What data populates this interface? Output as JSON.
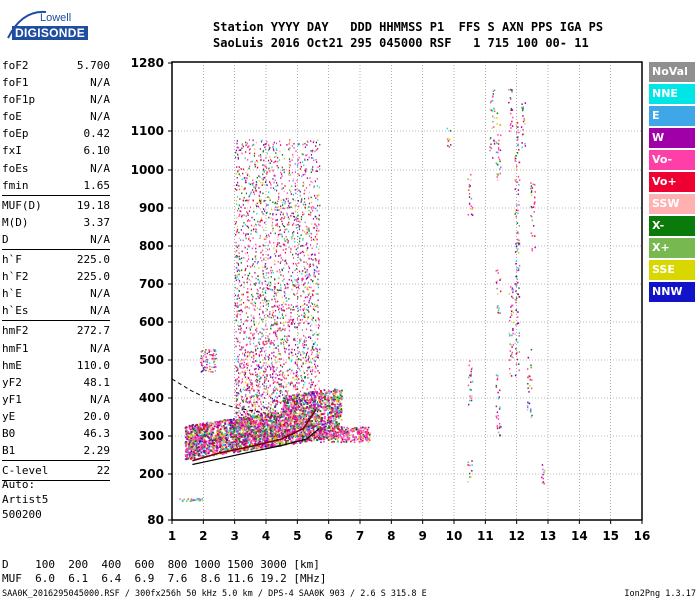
{
  "logo": {
    "line1": "Lowell",
    "line2": "DIGISONDE"
  },
  "header": {
    "line1": "Station YYYY DAY   DDD HHMMSS P1  FFS S AXN PPS IGA PS",
    "line2": "SaoLuis 2016 Oct21 295 045000 RSF   1 715 100 00- 11"
  },
  "params": [
    {
      "label": "foF2",
      "value": "5.700",
      "divider_after": false
    },
    {
      "label": "foF1",
      "value": "N/A",
      "divider_after": false
    },
    {
      "label": "foF1p",
      "value": "N/A",
      "divider_after": false
    },
    {
      "label": "foE",
      "value": "N/A",
      "divider_after": false
    },
    {
      "label": "foEp",
      "value": "0.42",
      "divider_after": false
    },
    {
      "label": "fxI",
      "value": "6.10",
      "divider_after": false
    },
    {
      "label": "foEs",
      "value": "N/A",
      "divider_after": false
    },
    {
      "label": "fmin",
      "value": "1.65",
      "divider_after": true
    },
    {
      "label": "MUF(D)",
      "value": "19.18",
      "divider_after": false
    },
    {
      "label": "M(D)",
      "value": "3.37",
      "divider_after": false
    },
    {
      "label": "D",
      "value": "N/A",
      "divider_after": true
    },
    {
      "label": "h`F",
      "value": "225.0",
      "divider_after": false
    },
    {
      "label": "h`F2",
      "value": "225.0",
      "divider_after": false
    },
    {
      "label": "h`E",
      "value": "N/A",
      "divider_after": false
    },
    {
      "label": "h`Es",
      "value": "N/A",
      "divider_after": true
    },
    {
      "label": "hmF2",
      "value": "272.7",
      "divider_after": false
    },
    {
      "label": "hmF1",
      "value": "N/A",
      "divider_after": false
    },
    {
      "label": "hmE",
      "value": "110.0",
      "divider_after": false
    },
    {
      "label": "yF2",
      "value": "48.1",
      "divider_after": false
    },
    {
      "label": "yF1",
      "value": "N/A",
      "divider_after": false
    },
    {
      "label": "yE",
      "value": "20.0",
      "divider_after": false
    },
    {
      "label": "B0",
      "value": "46.3",
      "divider_after": false
    },
    {
      "label": "B1",
      "value": "2.29",
      "divider_after": true
    },
    {
      "label": "C-level",
      "value": "22",
      "divider_after": true
    }
  ],
  "auto": {
    "line1": "Auto:",
    "line2": "Artist5",
    "line3": "500200"
  },
  "plot": {
    "y_ticks": [
      "1280",
      "1100",
      "1000",
      "900",
      "800",
      "700",
      "600",
      "500",
      "400",
      "300",
      "200",
      "80"
    ],
    "x_ticks": [
      "1",
      "2",
      "3",
      "4",
      "5",
      "6",
      "7",
      "8",
      "9",
      "10",
      "11",
      "12",
      "13",
      "14",
      "15",
      "16"
    ],
    "x_range": [
      1,
      16
    ],
    "y_range": [
      80,
      1280
    ]
  },
  "legend": [
    {
      "label": "NoVal",
      "color": "#909090"
    },
    {
      "label": "NNE",
      "color": "#00e6e6"
    },
    {
      "label": "E",
      "color": "#3fa7e8"
    },
    {
      "label": "W",
      "color": "#a000a8"
    },
    {
      "label": "Vo-",
      "color": "#ff3fa8"
    },
    {
      "label": "Vo+",
      "color": "#ef0033"
    },
    {
      "label": "SSW",
      "color": "#ffb0b0"
    },
    {
      "label": "X-",
      "color": "#0a7a0a"
    },
    {
      "label": "X+",
      "color": "#78b850"
    },
    {
      "label": "SSE",
      "color": "#d8d800"
    },
    {
      "label": "NNW",
      "color": "#1212c8"
    }
  ],
  "bottom": {
    "d_row": "D    100  200  400  600  800 1000 1500 3000 [km]",
    "muf_row": "MUF  6.0  6.1  6.4  6.9  7.6  8.6 11.6 19.2 [MHz]"
  },
  "footer": {
    "left": "SAA0K_2016295045000.RSF / 300fx256h 50 kHz 5.0 km / DPS-4 SAA0K 903 / 2.6 S 315.8 E",
    "right": "Ion2Png 1.3.17"
  }
}
